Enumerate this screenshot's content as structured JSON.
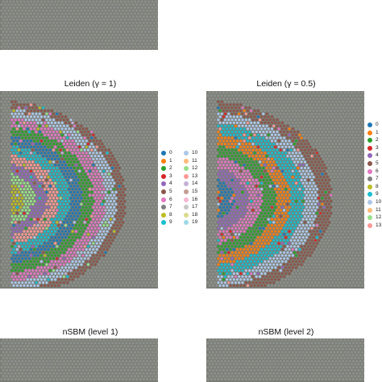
{
  "panels": [
    {
      "id": "top-left",
      "title": ""
    },
    {
      "id": "mid-left",
      "title": "Leiden (γ = 1)"
    },
    {
      "id": "mid-right",
      "title": "Leiden (γ = 0.5)"
    },
    {
      "id": "bottom-left",
      "title": "nSBM (level 1)"
    },
    {
      "id": "bottom-right",
      "title": "nSBM (level 2)"
    }
  ],
  "legend_leiden_1": {
    "items": [
      {
        "label": "0",
        "color": "#1f77b4"
      },
      {
        "label": "1",
        "color": "#ff7f0e"
      },
      {
        "label": "2",
        "color": "#2ca02c"
      },
      {
        "label": "3",
        "color": "#d62728"
      },
      {
        "label": "4",
        "color": "#9467bd"
      },
      {
        "label": "5",
        "color": "#8c564b"
      },
      {
        "label": "6",
        "color": "#e377c2"
      },
      {
        "label": "7",
        "color": "#7f7f7f"
      },
      {
        "label": "8",
        "color": "#bcbd22"
      },
      {
        "label": "9",
        "color": "#17becf"
      },
      {
        "label": "10",
        "color": "#aec7e8"
      },
      {
        "label": "11",
        "color": "#ffbb78"
      },
      {
        "label": "12",
        "color": "#98df8a"
      },
      {
        "label": "13",
        "color": "#ff9896"
      },
      {
        "label": "14",
        "color": "#c5b0d5"
      },
      {
        "label": "15",
        "color": "#c49c94"
      },
      {
        "label": "16",
        "color": "#f7b6d2"
      },
      {
        "label": "17",
        "color": "#c7c7c7"
      },
      {
        "label": "18",
        "color": "#dbdb8d"
      },
      {
        "label": "19",
        "color": "#9edae5"
      }
    ]
  },
  "legend_leiden_05": {
    "items": [
      {
        "label": "0",
        "color": "#1f77b4"
      },
      {
        "label": "1",
        "color": "#ff7f0e"
      },
      {
        "label": "2",
        "color": "#2ca02c"
      },
      {
        "label": "3",
        "color": "#d62728"
      },
      {
        "label": "4",
        "color": "#9467bd"
      },
      {
        "label": "5",
        "color": "#8c564b"
      },
      {
        "label": "6",
        "color": "#e377c2"
      },
      {
        "label": "7",
        "color": "#7f7f7f"
      },
      {
        "label": "8",
        "color": "#bcbd22"
      },
      {
        "label": "9",
        "color": "#17becf"
      },
      {
        "label": "10",
        "color": "#aec7e8"
      },
      {
        "label": "11",
        "color": "#ffbb78"
      },
      {
        "label": "12",
        "color": "#98df8a"
      },
      {
        "label": "13",
        "color": "#ff9896"
      }
    ]
  },
  "colors": {
    "background_gray": "#7a7d76",
    "spot_gray": "#8d908a",
    "title_text": "#111111"
  }
}
